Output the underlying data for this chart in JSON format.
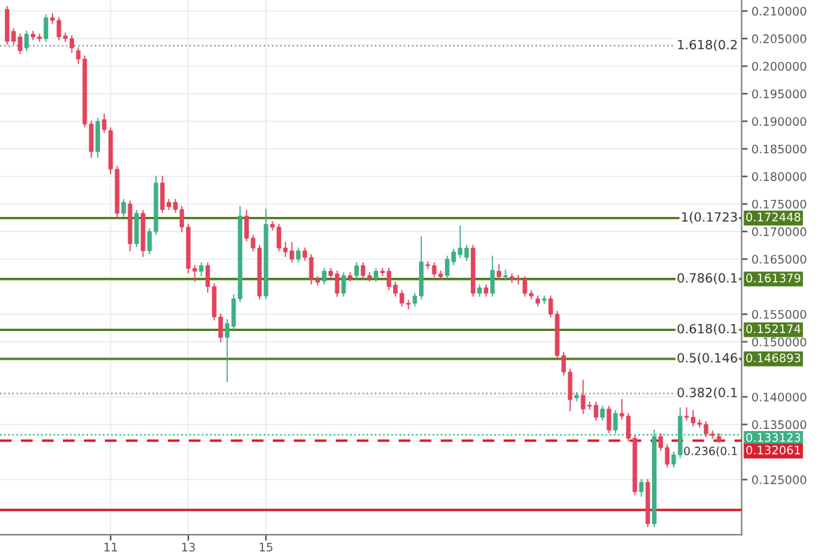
{
  "chart_data": {
    "type": "candlestick",
    "x": [
      8.333,
      8.5,
      8.667,
      8.833,
      9,
      9.167,
      9.333,
      9.5,
      9.667,
      9.833,
      10,
      10.167,
      10.333,
      10.5,
      10.667,
      10.833,
      11,
      11.167,
      11.333,
      11.5,
      11.667,
      11.833,
      12,
      12.167,
      12.333,
      12.5,
      12.667,
      12.833,
      13,
      13.167,
      13.333,
      13.5,
      13.667,
      13.833,
      14,
      14.167,
      14.333,
      14.5,
      14.667,
      14.833,
      15,
      15.167,
      15.333,
      15.5,
      15.667,
      15.833,
      16,
      16.167,
      16.333,
      16.5,
      16.667,
      16.833,
      17,
      17.167,
      17.333,
      17.5,
      17.667,
      17.833,
      18,
      18.167,
      18.333,
      18.5,
      18.667,
      18.833,
      19,
      19.167,
      19.333,
      19.5,
      19.667,
      19.833,
      20,
      20.167,
      20.333,
      20.5,
      20.667,
      20.833,
      21,
      21.167,
      21.333,
      21.5,
      21.667,
      21.833,
      22,
      22.167,
      22.333,
      22.5,
      22.667,
      22.833,
      23,
      23.167,
      23.333,
      23.5,
      23.667,
      23.833,
      24,
      24.167,
      24.333,
      24.5,
      24.667,
      24.833,
      25,
      25.167,
      25.333,
      25.5,
      25.667,
      25.833,
      26,
      26.167,
      26.333,
      26.5,
      26.667
    ],
    "ohlc": [
      [
        0.2103,
        0.2108,
        0.204,
        0.2045
      ],
      [
        0.2063,
        0.2068,
        0.204,
        0.2045
      ],
      [
        0.2053,
        0.2058,
        0.2023,
        0.2028
      ],
      [
        0.2033,
        0.2063,
        0.2028,
        0.2058
      ],
      [
        0.2058,
        0.2063,
        0.2048,
        0.2053
      ],
      [
        0.2053,
        0.2058,
        0.2045,
        0.205
      ],
      [
        0.205,
        0.2093,
        0.2045,
        0.2088
      ],
      [
        0.2088,
        0.2095,
        0.2078,
        0.2083
      ],
      [
        0.2083,
        0.2088,
        0.2048,
        0.2053
      ],
      [
        0.2055,
        0.206,
        0.2045,
        0.205
      ],
      [
        0.205,
        0.2055,
        0.2025,
        0.2033
      ],
      [
        0.2028,
        0.2033,
        0.2005,
        0.2013
      ],
      [
        0.2013,
        0.2018,
        0.189,
        0.1895
      ],
      [
        0.1895,
        0.19,
        0.1835,
        0.1845
      ],
      [
        0.1845,
        0.1905,
        0.1835,
        0.19
      ],
      [
        0.1903,
        0.1913,
        0.188,
        0.1885
      ],
      [
        0.1883,
        0.1888,
        0.1805,
        0.1813
      ],
      [
        0.1813,
        0.1818,
        0.1725,
        0.1733
      ],
      [
        0.1733,
        0.1758,
        0.1728,
        0.1753
      ],
      [
        0.175,
        0.1755,
        0.1665,
        0.1678
      ],
      [
        0.1678,
        0.1738,
        0.1673,
        0.1733
      ],
      [
        0.1733,
        0.1738,
        0.1655,
        0.1665
      ],
      [
        0.1665,
        0.1705,
        0.166,
        0.17
      ],
      [
        0.17,
        0.18,
        0.1695,
        0.1788
      ],
      [
        0.1788,
        0.18,
        0.1735,
        0.174
      ],
      [
        0.1753,
        0.1758,
        0.174,
        0.1745
      ],
      [
        0.1753,
        0.1758,
        0.1735,
        0.174
      ],
      [
        0.174,
        0.1745,
        0.17,
        0.1708
      ],
      [
        0.1708,
        0.1713,
        0.1625,
        0.1633
      ],
      [
        0.1633,
        0.1638,
        0.161,
        0.1628
      ],
      [
        0.1628,
        0.1643,
        0.162,
        0.1638
      ],
      [
        0.1638,
        0.1643,
        0.159,
        0.16
      ],
      [
        0.16,
        0.1605,
        0.154,
        0.1545
      ],
      [
        0.1545,
        0.155,
        0.15,
        0.1508
      ],
      [
        0.1508,
        0.154,
        0.1428,
        0.1533
      ],
      [
        0.1528,
        0.1585,
        0.152,
        0.1578
      ],
      [
        0.1578,
        0.1745,
        0.1573,
        0.1728
      ],
      [
        0.1728,
        0.1738,
        0.1683,
        0.1688
      ],
      [
        0.1688,
        0.1693,
        0.1665,
        0.167
      ],
      [
        0.167,
        0.1675,
        0.1578,
        0.1583
      ],
      [
        0.1583,
        0.174,
        0.1578,
        0.1713
      ],
      [
        0.1713,
        0.1718,
        0.1703,
        0.1708
      ],
      [
        0.1708,
        0.1713,
        0.1665,
        0.167
      ],
      [
        0.167,
        0.168,
        0.1655,
        0.1663
      ],
      [
        0.1665,
        0.168,
        0.1645,
        0.165
      ],
      [
        0.165,
        0.167,
        0.1645,
        0.1665
      ],
      [
        0.1665,
        0.167,
        0.1648,
        0.1653
      ],
      [
        0.1653,
        0.1658,
        0.1605,
        0.1613
      ],
      [
        0.1613,
        0.1618,
        0.1603,
        0.1608
      ],
      [
        0.161,
        0.1633,
        0.1605,
        0.1628
      ],
      [
        0.1628,
        0.1633,
        0.1615,
        0.162
      ],
      [
        0.1623,
        0.1628,
        0.1583,
        0.1588
      ],
      [
        0.1588,
        0.1625,
        0.1583,
        0.162
      ],
      [
        0.162,
        0.1625,
        0.161,
        0.1615
      ],
      [
        0.162,
        0.1643,
        0.1615,
        0.1638
      ],
      [
        0.1638,
        0.1643,
        0.1615,
        0.162
      ],
      [
        0.162,
        0.1625,
        0.161,
        0.1615
      ],
      [
        0.1615,
        0.1633,
        0.161,
        0.1628
      ],
      [
        0.1628,
        0.1633,
        0.162,
        0.1625
      ],
      [
        0.1628,
        0.1633,
        0.1595,
        0.16
      ],
      [
        0.1603,
        0.1608,
        0.1583,
        0.1588
      ],
      [
        0.1588,
        0.1593,
        0.1565,
        0.157
      ],
      [
        0.157,
        0.1575,
        0.156,
        0.1568
      ],
      [
        0.157,
        0.1588,
        0.1565,
        0.1583
      ],
      [
        0.1583,
        0.169,
        0.1578,
        0.1645
      ],
      [
        0.164,
        0.1645,
        0.1633,
        0.1638
      ],
      [
        0.1638,
        0.1643,
        0.1618,
        0.1623
      ],
      [
        0.1623,
        0.1628,
        0.1613,
        0.1618
      ],
      [
        0.162,
        0.1655,
        0.1615,
        0.165
      ],
      [
        0.1645,
        0.1668,
        0.164,
        0.1663
      ],
      [
        0.1658,
        0.171,
        0.1653,
        0.167
      ],
      [
        0.1653,
        0.1675,
        0.1648,
        0.167
      ],
      [
        0.167,
        0.1675,
        0.1583,
        0.1588
      ],
      [
        0.1588,
        0.1603,
        0.1583,
        0.1598
      ],
      [
        0.1598,
        0.1603,
        0.1583,
        0.1588
      ],
      [
        0.1588,
        0.1655,
        0.1583,
        0.163
      ],
      [
        0.1628,
        0.164,
        0.1613,
        0.1618
      ],
      [
        0.1618,
        0.163,
        0.1613,
        0.162
      ],
      [
        0.1618,
        0.1623,
        0.1608,
        0.1613
      ],
      [
        0.1615,
        0.162,
        0.1605,
        0.1613
      ],
      [
        0.1613,
        0.1618,
        0.1583,
        0.1588
      ],
      [
        0.1588,
        0.1593,
        0.1578,
        0.1583
      ],
      [
        0.1578,
        0.1583,
        0.1565,
        0.157
      ],
      [
        0.1575,
        0.1583,
        0.157,
        0.1578
      ],
      [
        0.1578,
        0.1583,
        0.1545,
        0.155
      ],
      [
        0.155,
        0.1555,
        0.147,
        0.1475
      ],
      [
        0.1475,
        0.148,
        0.144,
        0.1445
      ],
      [
        0.1445,
        0.145,
        0.1375,
        0.1395
      ],
      [
        0.1398,
        0.1408,
        0.1393,
        0.1403
      ],
      [
        0.1403,
        0.143,
        0.137,
        0.1378
      ],
      [
        0.1385,
        0.139,
        0.1378,
        0.1383
      ],
      [
        0.1385,
        0.139,
        0.1358,
        0.1363
      ],
      [
        0.1363,
        0.1383,
        0.1358,
        0.1378
      ],
      [
        0.1378,
        0.1383,
        0.1335,
        0.134
      ],
      [
        0.134,
        0.1375,
        0.1335,
        0.137
      ],
      [
        0.137,
        0.1395,
        0.136,
        0.1365
      ],
      [
        0.1365,
        0.137,
        0.132,
        0.1325
      ],
      [
        0.1325,
        0.133,
        0.1223,
        0.1228
      ],
      [
        0.1228,
        0.125,
        0.122,
        0.1245
      ],
      [
        0.1245,
        0.125,
        0.1165,
        0.117
      ],
      [
        0.117,
        0.134,
        0.1165,
        0.1328
      ],
      [
        0.1328,
        0.1333,
        0.1303,
        0.1308
      ],
      [
        0.1308,
        0.1313,
        0.1273,
        0.1278
      ],
      [
        0.1278,
        0.13,
        0.1273,
        0.1295
      ],
      [
        0.1295,
        0.138,
        0.129,
        0.1365
      ],
      [
        0.1365,
        0.138,
        0.1358,
        0.1363
      ],
      [
        0.1363,
        0.1375,
        0.1348,
        0.1353
      ],
      [
        0.1353,
        0.1358,
        0.1345,
        0.135
      ],
      [
        0.135,
        0.1355,
        0.1328,
        0.1333
      ],
      [
        0.1333,
        0.1338,
        0.1325,
        0.133
      ],
      [
        0.1328,
        0.1333,
        0.1318,
        0.1321
      ]
    ],
    "xlim": [
      8.15,
      27.25
    ],
    "xticks": [
      11,
      13,
      15
    ],
    "ylim": [
      0.115,
      0.212
    ],
    "yticks": [
      {
        "value": 0.21,
        "label": "0.210000"
      },
      {
        "value": 0.205,
        "label": "0.205000"
      },
      {
        "value": 0.2,
        "label": "0.200000"
      },
      {
        "value": 0.195,
        "label": "0.195000"
      },
      {
        "value": 0.19,
        "label": "0.190000"
      },
      {
        "value": 0.185,
        "label": "0.185000"
      },
      {
        "value": 0.18,
        "label": "0.180000"
      },
      {
        "value": 0.175,
        "label": "0.175000"
      },
      {
        "value": 0.17,
        "label": "0.170000"
      },
      {
        "value": 0.165,
        "label": "0.165000"
      },
      {
        "value": 0.155,
        "label": "0.155000"
      },
      {
        "value": 0.15,
        "label": "0.150000"
      },
      {
        "value": 0.14,
        "label": "0.140000"
      },
      {
        "value": 0.135,
        "label": "0.135000"
      },
      {
        "value": 0.125,
        "label": "0.125000"
      }
    ],
    "grid": true,
    "ref_lines": [
      {
        "axis": "y",
        "value": 0.2037,
        "color": "#999999",
        "line_style": "dotted"
      },
      {
        "axis": "y",
        "value": 0.172448,
        "label": "0.172448",
        "color": "#4f7d1f",
        "line_style": "solid"
      },
      {
        "axis": "y",
        "value": 0.161379,
        "label": "0.161379",
        "color": "#4f7d1f",
        "line_style": "solid"
      },
      {
        "axis": "y",
        "value": 0.152174,
        "label": "0.152174",
        "color": "#4f7d1f",
        "line_style": "solid"
      },
      {
        "axis": "y",
        "value": 0.146893,
        "label": "0.146893",
        "color": "#4f7d1f",
        "line_style": "solid"
      },
      {
        "axis": "y",
        "value": 0.1406,
        "color": "#999999",
        "line_style": "dotted"
      },
      {
        "axis": "y",
        "value": 0.133123,
        "label": "0.133123",
        "color": "#3daf85",
        "line_style": "dotted"
      },
      {
        "axis": "y",
        "value": 0.132061,
        "label": "0.132061",
        "color": "#d9202f",
        "line_style": "dashed"
      },
      {
        "axis": "y",
        "value": 0.1195,
        "color": "#d9202f",
        "line_style": "solid"
      }
    ],
    "annotations": [
      {
        "text": "1.618(0.2",
        "y": 0.2037
      },
      {
        "text": "1(0.1723",
        "y": 0.172448
      },
      {
        "text": "0.786(0.1",
        "y": 0.161379
      },
      {
        "text": "0.618(0.1",
        "y": 0.152174
      },
      {
        "text": "0.5(0.146",
        "y": 0.146893
      },
      {
        "text": "0.382(0.1",
        "y": 0.1406
      },
      {
        "text": "0.236(0.1",
        "y": 0.133123
      }
    ]
  }
}
